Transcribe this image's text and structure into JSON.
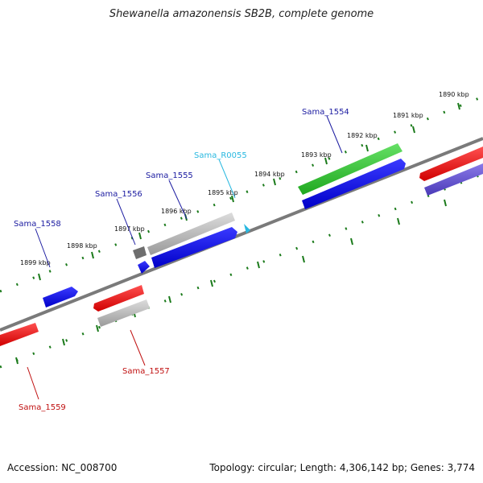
{
  "title": "Shewanella amazonensis SB2B, complete genome",
  "footer": {
    "accession": "Accession: NC_008700",
    "summary": "Topology: circular; Length: 4,306,142 bp; Genes: 3,774"
  },
  "colors": {
    "forward_cds": "#1010e0",
    "reverse_cds": "#e01010",
    "rna": "#2cc42c",
    "pseudo": "#b0b0b0",
    "backbone": "#777777",
    "scale_ticks": "#1a7a1a",
    "label_blue": "#1a1aa0",
    "label_red": "#c01010",
    "label_cyan": "#28b8e0"
  },
  "scale_labels": [
    "1890 kbp",
    "1891 kbp",
    "1892 kbp",
    "1893 kbp",
    "1894 kbp",
    "1895 kbp",
    "1896 kbp",
    "1897 kbp",
    "1898 kbp",
    "1899 kbp"
  ],
  "gene_labels": [
    {
      "text": "Sama_1554",
      "color": "label_blue"
    },
    {
      "text": "Sama_R0055",
      "color": "label_cyan"
    },
    {
      "text": "Sama_1555",
      "color": "label_blue"
    },
    {
      "text": "Sama_1556",
      "color": "label_blue"
    },
    {
      "text": "Sama_1558",
      "color": "label_blue"
    },
    {
      "text": "Sama_1557",
      "color": "label_red"
    },
    {
      "text": "Sama_1559",
      "color": "label_red"
    }
  ]
}
